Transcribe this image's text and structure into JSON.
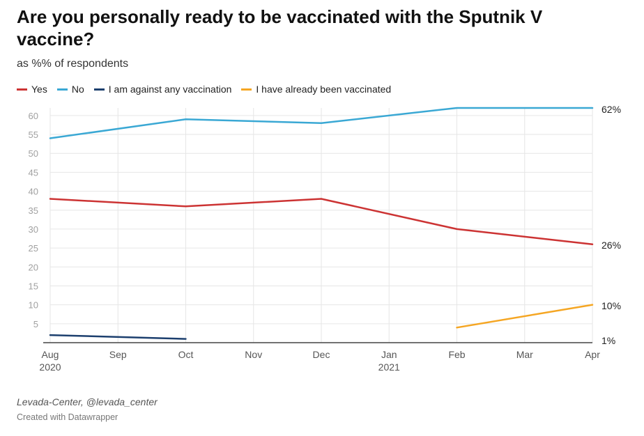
{
  "chart_data": {
    "type": "line",
    "title": "Are you personally ready to be vaccinated with the Sputnik V vaccine?",
    "subtitle": "as %% of respondents",
    "x_ticks": [
      {
        "label": "Aug",
        "sublabel": "2020",
        "m": 0
      },
      {
        "label": "Sep",
        "sublabel": "",
        "m": 1
      },
      {
        "label": "Oct",
        "sublabel": "",
        "m": 2
      },
      {
        "label": "Nov",
        "sublabel": "",
        "m": 3
      },
      {
        "label": "Dec",
        "sublabel": "",
        "m": 4
      },
      {
        "label": "Jan",
        "sublabel": "2021",
        "m": 5
      },
      {
        "label": "Feb",
        "sublabel": "",
        "m": 6
      },
      {
        "label": "Mar",
        "sublabel": "",
        "m": 7
      },
      {
        "label": "Apr",
        "sublabel": "",
        "m": 8
      }
    ],
    "y_ticks": [
      5,
      10,
      15,
      20,
      25,
      30,
      35,
      40,
      45,
      50,
      55,
      60
    ],
    "ylim": [
      0,
      62
    ],
    "grid": true,
    "legend_position": "top-left",
    "series": [
      {
        "name": "Yes",
        "color": "#cc3333",
        "points": [
          {
            "x": 0,
            "y": 38
          },
          {
            "x": 2,
            "y": 36
          },
          {
            "x": 4,
            "y": 38
          },
          {
            "x": 6,
            "y": 30
          },
          {
            "x": 8,
            "y": 26
          }
        ],
        "end_label": "26%"
      },
      {
        "name": "No",
        "color": "#3aa8d4",
        "points": [
          {
            "x": 0,
            "y": 54
          },
          {
            "x": 2,
            "y": 59
          },
          {
            "x": 4,
            "y": 58
          },
          {
            "x": 6,
            "y": 62
          },
          {
            "x": 8,
            "y": 62
          }
        ],
        "end_label": "62%"
      },
      {
        "name": "I am against any vaccination",
        "color": "#1c3f6e",
        "points": [
          {
            "x": 0,
            "y": 2
          },
          {
            "x": 2,
            "y": 1
          }
        ],
        "end_label": "1%"
      },
      {
        "name": "I have already been vaccinated",
        "color": "#f5a623",
        "points": [
          {
            "x": 6,
            "y": 4
          },
          {
            "x": 8,
            "y": 10
          }
        ],
        "end_label": "10%"
      }
    ]
  },
  "footer": {
    "source": "Levada-Center, @levada_center",
    "credit": "Created with Datawrapper"
  }
}
